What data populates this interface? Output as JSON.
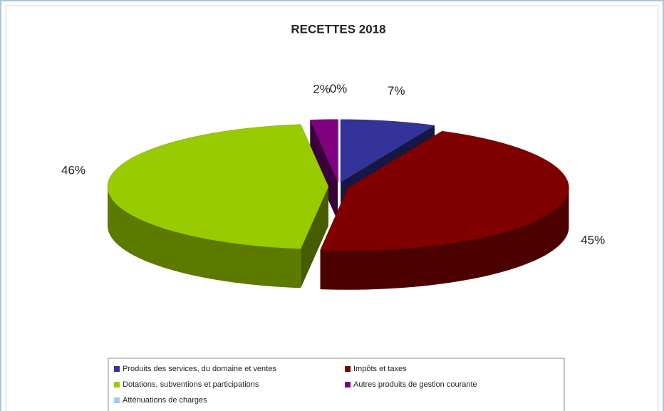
{
  "chart_data": {
    "type": "pie",
    "title": "RECETTES 2018",
    "categories": [
      "Produits des services, du domaine et ventes",
      "Impôts et taxes",
      "Dotations, subventions et participations",
      "Autres produits de gestion courante",
      "Atténuations de charges"
    ],
    "values": [
      7,
      45,
      46,
      2,
      0
    ],
    "value_labels": [
      "7%",
      "45%",
      "46%",
      "2%",
      "0%"
    ],
    "colors": [
      "#333399",
      "#800000",
      "#99cc00",
      "#800080",
      "#99ccff"
    ]
  }
}
